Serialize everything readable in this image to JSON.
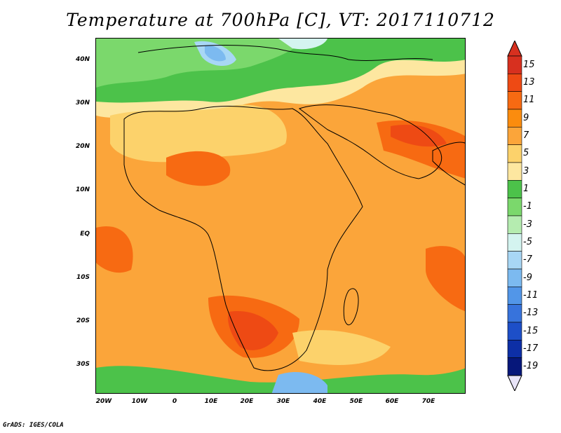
{
  "title": "Temperature at 700hPa [C], VT: 2017110712",
  "credit": "GrADS: IGES/COLA",
  "lat_labels": [
    "40N",
    "30N",
    "20N",
    "10N",
    "EQ",
    "10S",
    "20S",
    "30S"
  ],
  "lon_labels": [
    "20W",
    "10W",
    "0",
    "10E",
    "20E",
    "30E",
    "40E",
    "50E",
    "60E",
    "70E"
  ],
  "colorbar": {
    "labels": [
      "15",
      "13",
      "11",
      "9",
      "7",
      "5",
      "3",
      "1",
      "-1",
      "-3",
      "-5",
      "-7",
      "-9",
      "-11",
      "-13",
      "-15",
      "-17",
      "-19"
    ],
    "colors": [
      "#d7301f",
      "#ee4a14",
      "#f76a12",
      "#fb8c0e",
      "#fba53a",
      "#fcd26b",
      "#fde7a0",
      "#4cc24a",
      "#7bd86c",
      "#b5ecb0",
      "#d4f4f0",
      "#a8d7f5",
      "#7cbaf0",
      "#5296e8",
      "#3773dc",
      "#1d4fc8",
      "#0d2fa6",
      "#06177a"
    ]
  }
}
